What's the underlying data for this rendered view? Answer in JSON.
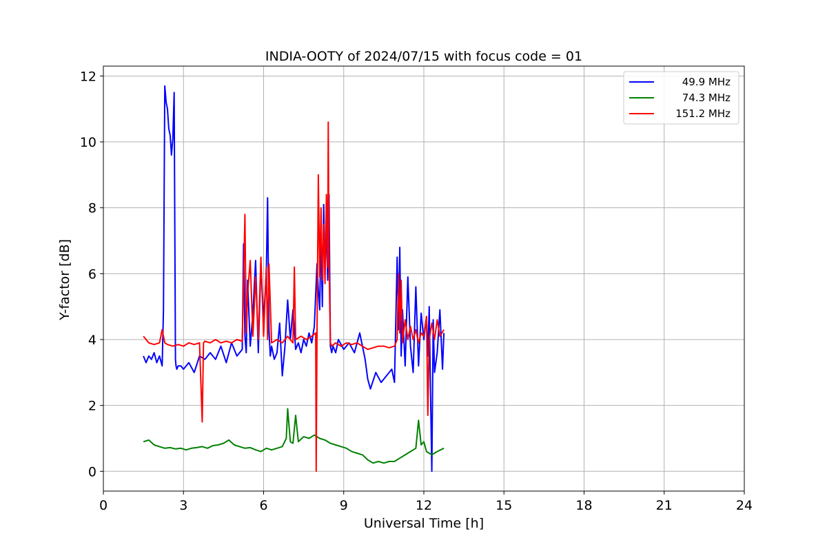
{
  "chart_data": {
    "type": "line",
    "title": "INDIA-OOTY of 2024/07/15 with focus code = 01",
    "xlabel": "Universal Time [h]",
    "ylabel": "Y-factor [dB]",
    "xlim": [
      0,
      24
    ],
    "ylim": [
      -0.6,
      12.3
    ],
    "xticks": [
      0,
      3,
      6,
      9,
      12,
      15,
      18,
      21,
      24
    ],
    "yticks": [
      0,
      2,
      4,
      6,
      8,
      10,
      12
    ],
    "grid": true,
    "legend_position": "top-right",
    "series": [
      {
        "name": "49.9 MHz",
        "color": "#0000ff",
        "x": [
          1.5,
          1.6,
          1.7,
          1.8,
          1.9,
          2.0,
          2.1,
          2.2,
          2.25,
          2.3,
          2.35,
          2.4,
          2.45,
          2.5,
          2.55,
          2.6,
          2.65,
          2.7,
          2.72,
          2.75,
          2.8,
          2.9,
          3.0,
          3.2,
          3.4,
          3.6,
          3.8,
          4.0,
          4.2,
          4.4,
          4.6,
          4.8,
          5.0,
          5.2,
          5.25,
          5.3,
          5.35,
          5.4,
          5.5,
          5.6,
          5.7,
          5.8,
          5.9,
          6.0,
          6.1,
          6.15,
          6.2,
          6.25,
          6.3,
          6.4,
          6.5,
          6.6,
          6.7,
          6.8,
          6.9,
          7.0,
          7.1,
          7.2,
          7.3,
          7.4,
          7.5,
          7.6,
          7.7,
          7.8,
          7.9,
          8.0,
          8.05,
          8.1,
          8.15,
          8.2,
          8.25,
          8.3,
          8.35,
          8.4,
          8.45,
          8.5,
          8.55,
          8.6,
          8.7,
          8.8,
          9.0,
          9.2,
          9.4,
          9.6,
          9.8,
          9.9,
          10.0,
          10.2,
          10.4,
          10.6,
          10.8,
          10.9,
          11.0,
          11.05,
          11.1,
          11.15,
          11.2,
          11.3,
          11.4,
          11.5,
          11.6,
          11.7,
          11.8,
          11.9,
          12.0,
          12.1,
          12.15,
          12.2,
          12.25,
          12.3,
          12.35,
          12.4,
          12.5,
          12.6,
          12.7,
          12.75
        ],
        "values": [
          3.5,
          3.3,
          3.5,
          3.4,
          3.6,
          3.3,
          3.5,
          3.2,
          4.9,
          11.7,
          11.2,
          11.0,
          10.4,
          10.2,
          9.6,
          10.1,
          11.5,
          3.4,
          3.2,
          3.1,
          3.2,
          3.2,
          3.1,
          3.3,
          3.0,
          3.5,
          3.4,
          3.6,
          3.4,
          3.8,
          3.3,
          3.9,
          3.5,
          3.7,
          6.9,
          4.1,
          3.6,
          5.8,
          3.8,
          4.8,
          6.4,
          3.6,
          6.3,
          4.6,
          6.0,
          8.3,
          4.3,
          3.5,
          3.8,
          3.4,
          3.6,
          4.5,
          2.9,
          3.8,
          5.2,
          4.0,
          4.9,
          3.7,
          3.9,
          3.6,
          4.0,
          3.8,
          4.2,
          3.9,
          4.4,
          6.3,
          5.5,
          4.9,
          7.3,
          5.0,
          8.1,
          6.0,
          7.5,
          5.8,
          8.4,
          3.8,
          3.6,
          3.8,
          3.6,
          4.0,
          3.7,
          3.9,
          3.6,
          4.2,
          3.4,
          2.8,
          2.5,
          3.0,
          2.7,
          2.9,
          3.1,
          2.7,
          6.5,
          4.3,
          6.8,
          3.5,
          4.9,
          3.2,
          5.9,
          3.8,
          3.0,
          5.6,
          3.2,
          4.8,
          4.0,
          4.7,
          3.5,
          5.0,
          2.4,
          0.0,
          4.6,
          3.0,
          3.6,
          4.9,
          3.1,
          4.2
        ]
      },
      {
        "name": "74.3 MHz",
        "color": "#008000",
        "x": [
          1.5,
          1.7,
          1.9,
          2.1,
          2.3,
          2.5,
          2.7,
          2.9,
          3.1,
          3.3,
          3.5,
          3.7,
          3.9,
          4.1,
          4.3,
          4.5,
          4.7,
          4.9,
          5.1,
          5.3,
          5.5,
          5.7,
          5.9,
          6.1,
          6.3,
          6.5,
          6.7,
          6.85,
          6.9,
          7.0,
          7.1,
          7.2,
          7.3,
          7.5,
          7.7,
          7.9,
          8.1,
          8.3,
          8.5,
          8.7,
          8.9,
          9.1,
          9.3,
          9.5,
          9.7,
          9.9,
          10.1,
          10.3,
          10.5,
          10.7,
          10.9,
          11.1,
          11.3,
          11.5,
          11.7,
          11.8,
          11.9,
          12.0,
          12.1,
          12.3,
          12.5,
          12.75
        ],
        "values": [
          0.9,
          0.95,
          0.8,
          0.75,
          0.7,
          0.72,
          0.68,
          0.7,
          0.65,
          0.7,
          0.72,
          0.75,
          0.7,
          0.78,
          0.8,
          0.85,
          0.95,
          0.8,
          0.75,
          0.7,
          0.72,
          0.65,
          0.6,
          0.7,
          0.65,
          0.7,
          0.75,
          1.0,
          1.9,
          0.9,
          0.85,
          1.7,
          0.9,
          1.05,
          1.0,
          1.1,
          1.0,
          0.95,
          0.85,
          0.8,
          0.75,
          0.7,
          0.6,
          0.55,
          0.5,
          0.35,
          0.25,
          0.3,
          0.25,
          0.3,
          0.3,
          0.4,
          0.5,
          0.6,
          0.7,
          1.55,
          0.8,
          0.9,
          0.6,
          0.5,
          0.6,
          0.7
        ]
      },
      {
        "name": "151.2 MHz",
        "color": "#ff0000",
        "x": [
          1.5,
          1.7,
          1.9,
          2.1,
          2.2,
          2.3,
          2.4,
          2.6,
          2.8,
          3.0,
          3.2,
          3.4,
          3.6,
          3.7,
          3.75,
          3.8,
          4.0,
          4.2,
          4.4,
          4.6,
          4.8,
          5.0,
          5.2,
          5.3,
          5.35,
          5.4,
          5.5,
          5.6,
          5.7,
          5.8,
          5.9,
          6.0,
          6.1,
          6.15,
          6.2,
          6.3,
          6.5,
          6.7,
          6.9,
          7.1,
          7.15,
          7.2,
          7.4,
          7.6,
          7.8,
          7.95,
          7.97,
          8.0,
          8.05,
          8.1,
          8.15,
          8.2,
          8.25,
          8.3,
          8.35,
          8.4,
          8.42,
          8.45,
          8.5,
          8.55,
          8.7,
          8.9,
          9.1,
          9.3,
          9.5,
          9.7,
          9.9,
          10.1,
          10.3,
          10.5,
          10.7,
          10.9,
          11.0,
          11.05,
          11.1,
          11.15,
          11.2,
          11.3,
          11.4,
          11.5,
          11.6,
          11.7,
          11.8,
          11.9,
          12.0,
          12.1,
          12.15,
          12.2,
          12.3,
          12.4,
          12.5,
          12.6,
          12.75
        ],
        "values": [
          4.1,
          3.9,
          3.85,
          3.9,
          4.3,
          3.9,
          3.85,
          3.8,
          3.85,
          3.8,
          3.9,
          3.85,
          3.9,
          1.5,
          3.9,
          3.95,
          3.9,
          4.0,
          3.9,
          3.95,
          3.9,
          4.0,
          3.95,
          7.8,
          4.2,
          5.4,
          6.4,
          4.1,
          5.9,
          4.0,
          6.5,
          4.1,
          6.2,
          4.0,
          6.3,
          3.9,
          4.0,
          3.9,
          4.1,
          3.9,
          6.2,
          4.0,
          4.1,
          4.0,
          4.1,
          4.2,
          0.0,
          4.2,
          9.0,
          5.9,
          8.0,
          5.8,
          7.5,
          5.7,
          8.4,
          6.2,
          10.6,
          6.4,
          3.9,
          3.8,
          3.9,
          3.8,
          3.9,
          3.85,
          3.9,
          3.8,
          3.7,
          3.75,
          3.8,
          3.8,
          3.75,
          3.8,
          4.0,
          6.0,
          4.2,
          5.8,
          3.9,
          4.6,
          4.0,
          4.4,
          4.0,
          4.3,
          3.9,
          4.2,
          4.1,
          4.7,
          1.7,
          4.0,
          4.5,
          4.0,
          4.6,
          4.1,
          4.3
        ]
      }
    ]
  }
}
